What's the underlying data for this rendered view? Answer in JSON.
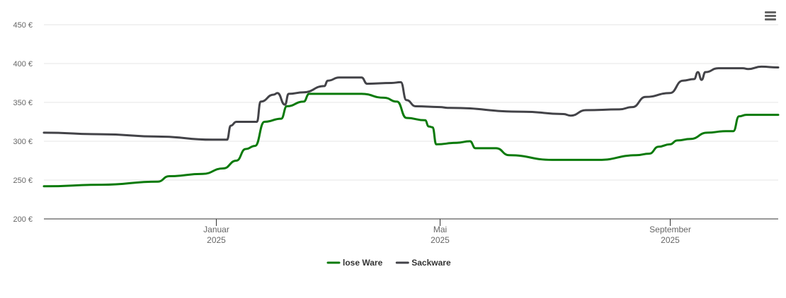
{
  "chart_data": {
    "type": "line",
    "title": "",
    "xlabel": "",
    "ylabel": "",
    "ylim": [
      200,
      450
    ],
    "yticks": [
      "200 €",
      "250 €",
      "300 €",
      "350 €",
      "400 €",
      "450 €"
    ],
    "ytick_values": [
      200,
      250,
      300,
      350,
      400,
      450
    ],
    "xlim": [
      "2024-10-01",
      "2025-10-29"
    ],
    "xticks": [
      {
        "date": "2025-01-01",
        "month": "Januar",
        "year": "2025"
      },
      {
        "date": "2025-05-01",
        "month": "Mai",
        "year": "2025"
      },
      {
        "date": "2025-09-01",
        "month": "September",
        "year": "2025"
      }
    ],
    "grid": true,
    "legend_position": "bottom-center",
    "series": [
      {
        "name": "lose Ware",
        "color": "#0a7a0a",
        "points": [
          [
            "2024-10-01",
            242
          ],
          [
            "2024-11-01",
            244
          ],
          [
            "2024-12-01",
            248
          ],
          [
            "2024-12-07",
            255
          ],
          [
            "2024-12-25",
            258
          ],
          [
            "2025-01-05",
            265
          ],
          [
            "2025-01-12",
            275
          ],
          [
            "2025-01-17",
            290
          ],
          [
            "2025-01-22",
            294
          ],
          [
            "2025-01-27",
            325
          ],
          [
            "2025-02-05",
            329
          ],
          [
            "2025-02-08",
            345
          ],
          [
            "2025-02-17",
            351
          ],
          [
            "2025-02-20",
            361
          ],
          [
            "2025-03-20",
            361
          ],
          [
            "2025-04-01",
            356
          ],
          [
            "2025-04-08",
            351
          ],
          [
            "2025-04-13",
            330
          ],
          [
            "2025-04-23",
            327
          ],
          [
            "2025-04-25",
            319
          ],
          [
            "2025-04-27",
            318
          ],
          [
            "2025-04-29",
            296
          ],
          [
            "2025-05-10",
            298
          ],
          [
            "2025-05-17",
            300
          ],
          [
            "2025-05-20",
            291
          ],
          [
            "2025-05-31",
            291
          ],
          [
            "2025-06-07",
            282
          ],
          [
            "2025-06-30",
            276
          ],
          [
            "2025-07-25",
            276
          ],
          [
            "2025-08-14",
            282
          ],
          [
            "2025-08-21",
            284
          ],
          [
            "2025-08-26",
            293
          ],
          [
            "2025-09-01",
            296
          ],
          [
            "2025-09-05",
            301
          ],
          [
            "2025-09-12",
            303
          ],
          [
            "2025-09-21",
            311
          ],
          [
            "2025-10-01",
            313
          ],
          [
            "2025-10-05",
            313
          ],
          [
            "2025-10-08",
            332
          ],
          [
            "2025-10-12",
            334
          ],
          [
            "2025-10-29",
            334
          ]
        ]
      },
      {
        "name": "Sackware",
        "color": "#434348",
        "points": [
          [
            "2024-10-01",
            311
          ],
          [
            "2024-11-01",
            309
          ],
          [
            "2024-12-01",
            306
          ],
          [
            "2024-12-30",
            302
          ],
          [
            "2025-01-07",
            302
          ],
          [
            "2025-01-09",
            320
          ],
          [
            "2025-01-12",
            325
          ],
          [
            "2025-01-23",
            325
          ],
          [
            "2025-01-25",
            351
          ],
          [
            "2025-02-01",
            360
          ],
          [
            "2025-02-03",
            362
          ],
          [
            "2025-02-07",
            347
          ],
          [
            "2025-02-09",
            361
          ],
          [
            "2025-02-17",
            363
          ],
          [
            "2025-02-28",
            371
          ],
          [
            "2025-03-02",
            378
          ],
          [
            "2025-03-08",
            382
          ],
          [
            "2025-03-20",
            382
          ],
          [
            "2025-03-23",
            374
          ],
          [
            "2025-04-05",
            375
          ],
          [
            "2025-04-10",
            376
          ],
          [
            "2025-04-13",
            353
          ],
          [
            "2025-04-18",
            345
          ],
          [
            "2025-05-01",
            344
          ],
          [
            "2025-05-05",
            343
          ],
          [
            "2025-06-15",
            338
          ],
          [
            "2025-07-06",
            335
          ],
          [
            "2025-07-10",
            333
          ],
          [
            "2025-07-18",
            340
          ],
          [
            "2025-08-05",
            341
          ],
          [
            "2025-08-12",
            344
          ],
          [
            "2025-08-19",
            357
          ],
          [
            "2025-09-01",
            362
          ],
          [
            "2025-09-08",
            378
          ],
          [
            "2025-09-14",
            380
          ],
          [
            "2025-09-16",
            389
          ],
          [
            "2025-09-18",
            379
          ],
          [
            "2025-09-20",
            389
          ],
          [
            "2025-09-27",
            394
          ],
          [
            "2025-10-05",
            394
          ],
          [
            "2025-10-10",
            394
          ],
          [
            "2025-10-13",
            393
          ],
          [
            "2025-10-20",
            396
          ],
          [
            "2025-10-29",
            395
          ]
        ]
      }
    ]
  },
  "menu": {
    "icon": "hamburger-menu-icon"
  }
}
